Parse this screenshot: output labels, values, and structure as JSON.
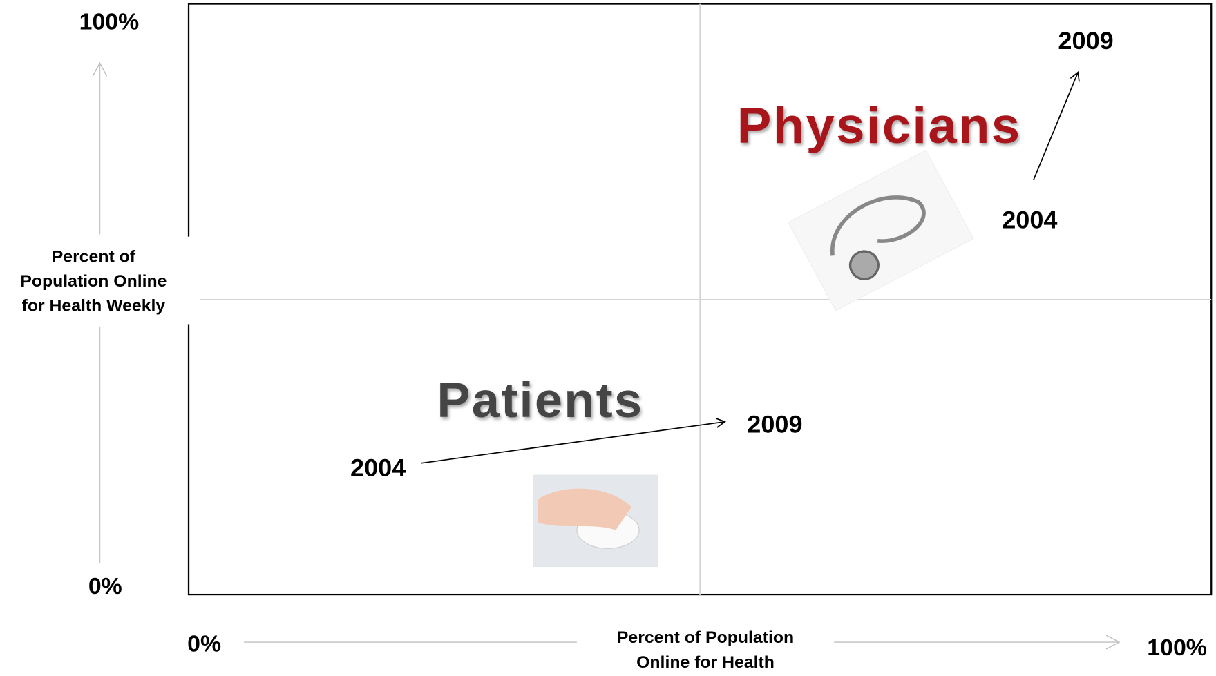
{
  "y_axis": {
    "max_label": "100%",
    "min_label": "0%",
    "title_lines": [
      "Percent of",
      "Population Online",
      "for Health Weekly"
    ]
  },
  "x_axis": {
    "min_label": "0%",
    "max_label": "100%",
    "title_lines": [
      "Percent of Population",
      "Online for Health"
    ]
  },
  "groups": [
    {
      "label": "Physicians",
      "from_label": "2004",
      "to_label": "2009"
    },
    {
      "label": "Patients",
      "from_label": "2004",
      "to_label": "2009"
    }
  ]
}
